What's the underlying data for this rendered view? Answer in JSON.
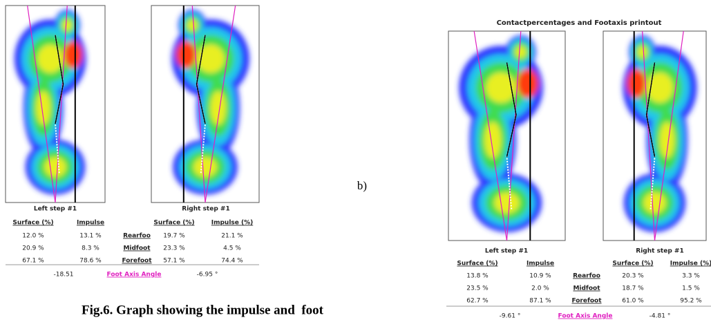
{
  "panel_a": {
    "left_step": "Left step #1",
    "right_step": "Right step #1",
    "table": {
      "header": [
        "Surface (%)",
        "Impulse",
        "Surface (%)",
        "Impulse (%)"
      ],
      "rows": [
        [
          "12.0 %",
          "13.1 %",
          "Rearfoo",
          "19.7 %",
          "21.1 %"
        ],
        [
          "20.9 %",
          "8.3 %",
          "Midfoot",
          "23.3 %",
          "4.5 %"
        ],
        [
          "67.1 %",
          "78.6 %",
          "Forefoot",
          "57.1 %",
          "74.4 %"
        ]
      ],
      "foot_axis": [
        "-18.51",
        "Foot Axis Angle",
        "-6.95 °"
      ]
    }
  },
  "panel_b_label": "b)",
  "panel_b": {
    "title": "Contactpercentages and Footaxis printout",
    "left_step": "Left step #1",
    "right_step": "Right step #1",
    "table": {
      "header": [
        "Surface (%)",
        "Impulse",
        "Surface (%)",
        "Impulse (%)"
      ],
      "rows": [
        [
          "13.8 %",
          "10.9 %",
          "Rearfoo",
          "20.3 %",
          "3.3 %"
        ],
        [
          "23.5 %",
          "2.0 %",
          "Midfoot",
          "18.7 %",
          "1.5 %"
        ],
        [
          "62.7 %",
          "87.1 %",
          "Forefoot",
          "61.0 %",
          "95.2 %"
        ]
      ],
      "foot_axis": [
        "-9.61 °",
        "Foot Axis Angle",
        "-4.81 °"
      ]
    }
  },
  "caption": "Fig.6. Graph showing the impulse and  foot"
}
